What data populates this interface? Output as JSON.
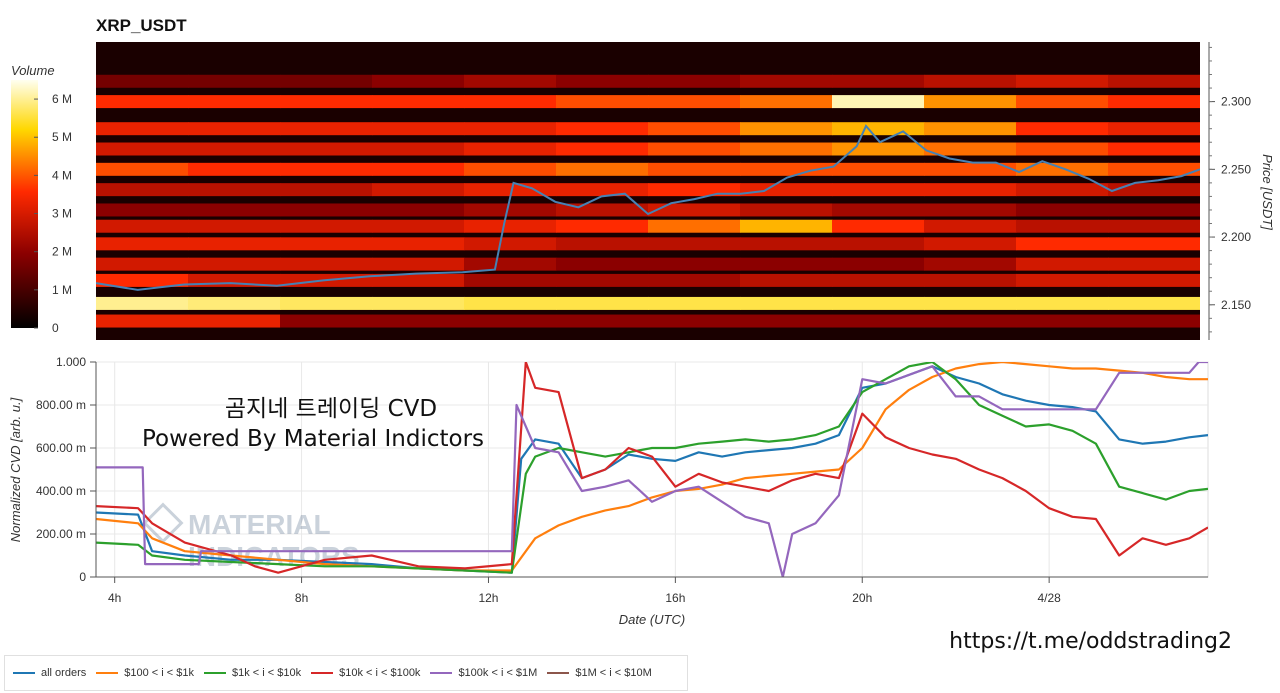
{
  "chart_data": [
    {
      "type": "heatmap",
      "title": "XRP_USDT",
      "colorbar": {
        "label": "Volume",
        "ticks": [
          "0",
          "1 M",
          "2 M",
          "3 M",
          "4 M",
          "5 M",
          "6 M"
        ],
        "range": [
          0,
          6500000
        ]
      },
      "y_axis": {
        "label": "Price [USDT]",
        "ticks": [
          "2.150",
          "2.200",
          "2.250",
          "2.300"
        ],
        "range": [
          2.124,
          2.344
        ]
      },
      "x_range_hours": [
        3.6,
        27.4
      ],
      "bands": [
        {
          "price": 2.315,
          "intensity": [
            0.25,
            0.25,
            0.25,
            0.3,
            0.35,
            0.3,
            0.3,
            0.35,
            0.35,
            0.4,
            0.45,
            0.4
          ]
        },
        {
          "price": 2.3,
          "intensity": [
            0.55,
            0.55,
            0.55,
            0.55,
            0.55,
            0.6,
            0.6,
            0.65,
            0.95,
            0.7,
            0.6,
            0.55
          ]
        },
        {
          "price": 2.28,
          "intensity": [
            0.5,
            0.5,
            0.5,
            0.5,
            0.5,
            0.55,
            0.6,
            0.7,
            0.75,
            0.7,
            0.55,
            0.5
          ]
        },
        {
          "price": 2.265,
          "intensity": [
            0.45,
            0.45,
            0.45,
            0.45,
            0.5,
            0.55,
            0.6,
            0.65,
            0.7,
            0.65,
            0.6,
            0.55
          ]
        },
        {
          "price": 2.25,
          "intensity": [
            0.6,
            0.55,
            0.55,
            0.55,
            0.6,
            0.65,
            0.6,
            0.6,
            0.6,
            0.6,
            0.65,
            0.6
          ]
        },
        {
          "price": 2.235,
          "intensity": [
            0.4,
            0.4,
            0.4,
            0.45,
            0.5,
            0.5,
            0.55,
            0.5,
            0.5,
            0.5,
            0.45,
            0.4
          ]
        },
        {
          "price": 2.22,
          "intensity": [
            0.3,
            0.3,
            0.3,
            0.3,
            0.35,
            0.4,
            0.45,
            0.4,
            0.35,
            0.35,
            0.3,
            0.3
          ]
        },
        {
          "price": 2.208,
          "intensity": [
            0.45,
            0.45,
            0.45,
            0.45,
            0.5,
            0.55,
            0.65,
            0.75,
            0.55,
            0.45,
            0.4,
            0.4
          ]
        },
        {
          "price": 2.195,
          "intensity": [
            0.5,
            0.5,
            0.5,
            0.5,
            0.45,
            0.4,
            0.4,
            0.4,
            0.4,
            0.45,
            0.55,
            0.55
          ]
        },
        {
          "price": 2.18,
          "intensity": [
            0.45,
            0.45,
            0.45,
            0.45,
            0.35,
            0.3,
            0.3,
            0.3,
            0.3,
            0.35,
            0.45,
            0.45
          ]
        },
        {
          "price": 2.168,
          "intensity": [
            0.55,
            0.45,
            0.45,
            0.45,
            0.35,
            0.35,
            0.35,
            0.4,
            0.4,
            0.4,
            0.45,
            0.45
          ]
        },
        {
          "price": 2.151,
          "intensity": [
            0.92,
            0.9,
            0.88,
            0.88,
            0.86,
            0.86,
            0.86,
            0.86,
            0.86,
            0.86,
            0.86,
            0.86
          ]
        },
        {
          "price": 2.138,
          "intensity": [
            0.5,
            0.5,
            0.3,
            0.3,
            0.3,
            0.3,
            0.3,
            0.3,
            0.3,
            0.3,
            0.3,
            0.3
          ]
        }
      ],
      "price_series": {
        "x": [
          3.6,
          4.5,
          5.5,
          6.5,
          7.5,
          8.5,
          9.5,
          10.5,
          11.5,
          12.2,
          12.4,
          12.6,
          13.0,
          13.5,
          14.0,
          14.5,
          15.0,
          15.5,
          16.0,
          16.5,
          17.0,
          17.5,
          18.0,
          18.5,
          19.0,
          19.5,
          20.0,
          20.2,
          20.5,
          21.0,
          21.5,
          22.0,
          22.5,
          23.0,
          23.5,
          24.0,
          24.5,
          25.0,
          25.5,
          26.0,
          26.5,
          27.0,
          27.4
        ],
        "y": [
          2.166,
          2.161,
          2.165,
          2.166,
          2.164,
          2.168,
          2.171,
          2.173,
          2.174,
          2.176,
          2.21,
          2.24,
          2.236,
          2.226,
          2.222,
          2.23,
          2.232,
          2.217,
          2.225,
          2.228,
          2.232,
          2.232,
          2.234,
          2.244,
          2.249,
          2.252,
          2.267,
          2.282,
          2.27,
          2.278,
          2.264,
          2.258,
          2.255,
          2.255,
          2.248,
          2.256,
          2.25,
          2.243,
          2.234,
          2.24,
          2.242,
          2.245,
          2.25
        ]
      }
    },
    {
      "type": "line",
      "xlabel": "Date (UTC)",
      "ylabel": "Normalized CVD [arb. u.]",
      "ylim": [
        0,
        1
      ],
      "y_ticks": [
        "0",
        "200.00 m",
        "400.00 m",
        "600.00 m",
        "800.00 m",
        "1.000"
      ],
      "x_ticks": [
        "4h",
        "8h",
        "12h",
        "16h",
        "20h",
        "4/28"
      ],
      "x_range_hours": [
        3.6,
        27.4
      ],
      "series": [
        {
          "name": "all orders",
          "color": "#1f77b4",
          "x": [
            3.6,
            4.5,
            4.8,
            5.5,
            6.5,
            7.5,
            8.5,
            9.5,
            10.5,
            11.5,
            12.5,
            12.7,
            13.0,
            13.5,
            14.0,
            14.5,
            15.0,
            15.5,
            16.0,
            16.5,
            17.0,
            17.5,
            18.0,
            18.5,
            19.0,
            19.5,
            20.0,
            20.5,
            21.0,
            21.5,
            22.0,
            22.5,
            23.0,
            23.5,
            24.0,
            24.5,
            25.0,
            25.5,
            26.0,
            26.5,
            27.0,
            27.4
          ],
          "y": [
            0.3,
            0.29,
            0.12,
            0.1,
            0.08,
            0.08,
            0.07,
            0.06,
            0.04,
            0.03,
            0.02,
            0.55,
            0.64,
            0.62,
            0.46,
            0.5,
            0.57,
            0.55,
            0.54,
            0.58,
            0.56,
            0.58,
            0.59,
            0.6,
            0.62,
            0.66,
            0.88,
            0.9,
            0.94,
            0.98,
            0.93,
            0.9,
            0.85,
            0.82,
            0.8,
            0.79,
            0.77,
            0.64,
            0.62,
            0.63,
            0.65,
            0.66
          ]
        },
        {
          "name": "$100 < i < $1k",
          "color": "#ff7f0e",
          "x": [
            3.6,
            4.5,
            4.8,
            5.5,
            6.5,
            7.5,
            8.5,
            9.5,
            10.5,
            11.5,
            12.5,
            13.0,
            13.5,
            14.0,
            14.5,
            15.0,
            15.5,
            16.0,
            16.5,
            17.0,
            17.5,
            18.0,
            18.5,
            19.0,
            19.5,
            20.0,
            20.5,
            21.0,
            21.5,
            22.0,
            22.5,
            23.0,
            23.5,
            24.0,
            24.5,
            25.0,
            25.5,
            26.0,
            26.5,
            27.0,
            27.4
          ],
          "y": [
            0.27,
            0.25,
            0.18,
            0.12,
            0.1,
            0.08,
            0.06,
            0.05,
            0.04,
            0.03,
            0.03,
            0.18,
            0.24,
            0.28,
            0.31,
            0.33,
            0.37,
            0.4,
            0.41,
            0.43,
            0.46,
            0.47,
            0.48,
            0.49,
            0.5,
            0.6,
            0.78,
            0.87,
            0.93,
            0.97,
            0.99,
            1.0,
            0.99,
            0.98,
            0.97,
            0.97,
            0.96,
            0.95,
            0.93,
            0.92,
            0.92
          ]
        },
        {
          "name": "$1k < i < $10k",
          "color": "#2ca02c",
          "x": [
            3.6,
            4.5,
            4.8,
            5.5,
            6.5,
            7.5,
            8.5,
            9.5,
            10.5,
            11.5,
            12.5,
            12.8,
            13.0,
            13.5,
            14.0,
            14.5,
            15.0,
            15.5,
            16.0,
            16.5,
            17.0,
            17.5,
            18.0,
            18.5,
            19.0,
            19.5,
            20.0,
            20.5,
            21.0,
            21.5,
            22.0,
            22.5,
            23.0,
            23.5,
            24.0,
            24.5,
            25.0,
            25.5,
            26.0,
            26.5,
            27.0,
            27.4
          ],
          "y": [
            0.16,
            0.15,
            0.1,
            0.08,
            0.07,
            0.06,
            0.05,
            0.05,
            0.04,
            0.03,
            0.02,
            0.48,
            0.56,
            0.6,
            0.58,
            0.56,
            0.58,
            0.6,
            0.6,
            0.62,
            0.63,
            0.64,
            0.63,
            0.64,
            0.66,
            0.7,
            0.86,
            0.92,
            0.98,
            1.0,
            0.92,
            0.8,
            0.75,
            0.7,
            0.71,
            0.68,
            0.62,
            0.42,
            0.39,
            0.36,
            0.4,
            0.41
          ]
        },
        {
          "name": "$10k < i < $100k",
          "color": "#d62728",
          "x": [
            3.6,
            4.5,
            4.8,
            5.5,
            6.5,
            7.0,
            7.5,
            8.5,
            9.5,
            10.5,
            11.5,
            12.5,
            12.8,
            13.0,
            13.5,
            14.0,
            14.5,
            15.0,
            15.5,
            16.0,
            16.5,
            17.0,
            17.5,
            18.0,
            18.5,
            19.0,
            19.5,
            20.0,
            20.5,
            21.0,
            21.5,
            22.0,
            22.5,
            23.0,
            23.5,
            24.0,
            24.5,
            25.0,
            25.5,
            26.0,
            26.5,
            27.0,
            27.4
          ],
          "y": [
            0.33,
            0.32,
            0.25,
            0.16,
            0.1,
            0.05,
            0.02,
            0.08,
            0.1,
            0.05,
            0.04,
            0.06,
            1.0,
            0.88,
            0.86,
            0.46,
            0.5,
            0.6,
            0.56,
            0.42,
            0.48,
            0.44,
            0.42,
            0.4,
            0.45,
            0.48,
            0.46,
            0.76,
            0.65,
            0.6,
            0.57,
            0.55,
            0.5,
            0.46,
            0.4,
            0.32,
            0.28,
            0.27,
            0.1,
            0.18,
            0.15,
            0.18,
            0.23
          ]
        },
        {
          "name": "$100k < i < $1M",
          "color": "#9467bd",
          "x": [
            3.6,
            4.6,
            4.65,
            5.8,
            5.85,
            8.5,
            8.55,
            12.5,
            12.6,
            13.0,
            13.5,
            14.0,
            14.5,
            15.0,
            15.5,
            16.0,
            16.5,
            17.0,
            17.5,
            18.0,
            18.3,
            18.5,
            19.0,
            19.5,
            20.0,
            20.5,
            21.0,
            21.5,
            22.0,
            22.5,
            23.0,
            23.5,
            24.0,
            24.5,
            25.0,
            25.5,
            26.0,
            26.5,
            27.0,
            27.2,
            27.4
          ],
          "y": [
            0.51,
            0.51,
            0.06,
            0.06,
            0.12,
            0.12,
            0.12,
            0.12,
            0.8,
            0.6,
            0.58,
            0.4,
            0.42,
            0.45,
            0.35,
            0.4,
            0.42,
            0.35,
            0.28,
            0.25,
            0.0,
            0.2,
            0.25,
            0.38,
            0.92,
            0.9,
            0.94,
            0.98,
            0.84,
            0.84,
            0.78,
            0.78,
            0.78,
            0.78,
            0.78,
            0.95,
            0.95,
            0.95,
            0.95,
            1.0,
            1.0
          ]
        },
        {
          "name": "$1M < i < $10M",
          "color": "#8c564b",
          "x": [],
          "y": []
        }
      ]
    }
  ],
  "overlay_text": {
    "line1": "곰지네 트레이딩 CVD",
    "line2": "Powered By Material Indictors"
  },
  "watermark_text": {
    "line1": "MATERIAL",
    "line2": "INDICATORS"
  },
  "footer_link": "https://t.me/oddstrading2"
}
